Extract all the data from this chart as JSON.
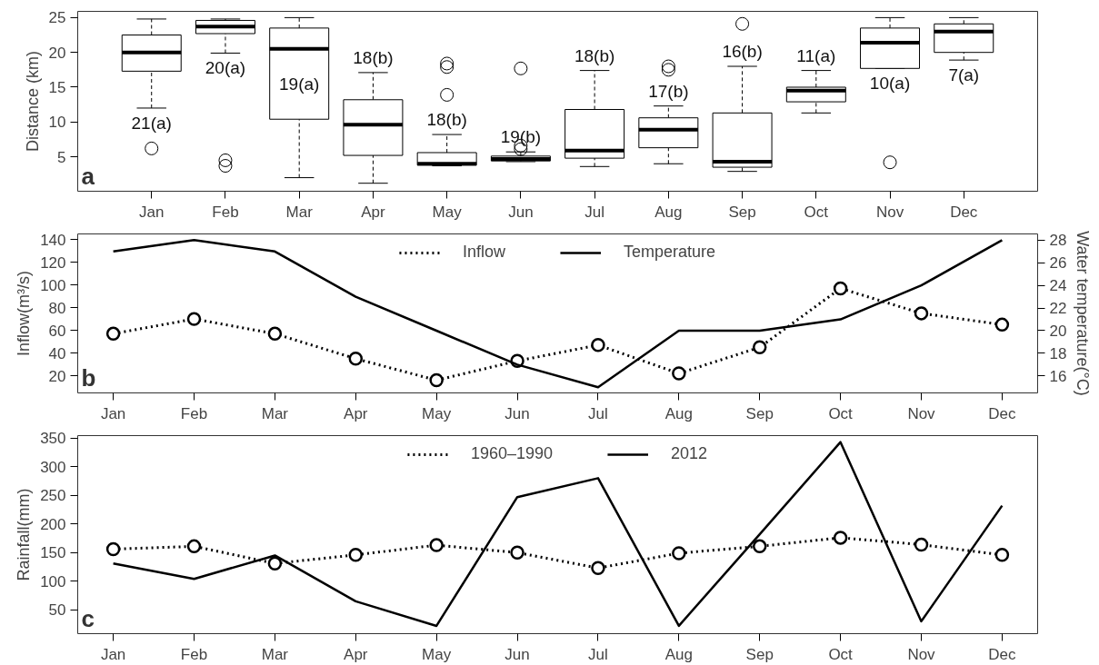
{
  "chart_data": [
    {
      "type": "box",
      "ylabel": "Distance (km)",
      "categories": [
        "Jan",
        "Feb",
        "Mar",
        "Apr",
        "May",
        "Jun",
        "Jul",
        "Aug",
        "Sep",
        "Oct",
        "Nov",
        "Dec"
      ],
      "boxes": [
        {
          "low": 12.0,
          "q1": 17.3,
          "median": 20.0,
          "q3": 22.5,
          "high": 24.8,
          "outliers": [
            6.2
          ]
        },
        {
          "low": 19.9,
          "q1": 22.7,
          "median": 23.7,
          "q3": 24.6,
          "high": 24.8,
          "outliers": [
            4.5,
            3.7
          ]
        },
        {
          "low": 2.0,
          "q1": 10.4,
          "median": 20.5,
          "q3": 23.5,
          "high": 25.0
        },
        {
          "low": 1.2,
          "q1": 5.2,
          "median": 9.6,
          "q3": 13.2,
          "high": 17.1
        },
        {
          "low": 3.7,
          "q1": 3.8,
          "median": 4.0,
          "q3": 5.6,
          "high": 8.2,
          "outliers": [
            18.4,
            17.9,
            13.9
          ]
        },
        {
          "low": 4.3,
          "q1": 4.4,
          "median": 4.7,
          "q3": 5.1,
          "high": 5.7,
          "outliers": [
            17.7,
            6.6,
            6.1
          ]
        },
        {
          "low": 3.6,
          "q1": 4.8,
          "median": 5.9,
          "q3": 11.8,
          "high": 17.4
        },
        {
          "low": 4.0,
          "q1": 6.3,
          "median": 8.9,
          "q3": 10.6,
          "high": 12.3,
          "outliers": [
            18.0,
            17.5
          ]
        },
        {
          "low": 2.9,
          "q1": 3.5,
          "median": 4.3,
          "q3": 11.3,
          "high": 18.0,
          "outliers": [
            24.1
          ]
        },
        {
          "low": 11.3,
          "q1": 12.9,
          "median": 14.5,
          "q3": 15.0,
          "high": 17.4
        },
        {
          "low": 17.7,
          "q1": 17.7,
          "median": 21.4,
          "q3": 23.5,
          "high": 25.0,
          "outliers": [
            4.2
          ]
        },
        {
          "low": 18.9,
          "q1": 20.0,
          "median": 23.0,
          "q3": 24.1,
          "high": 25.0
        }
      ],
      "ylim": [
        0.05,
        25.9
      ],
      "yticks": [
        5,
        10,
        15,
        20,
        25
      ],
      "annotations": [
        "a",
        "21(a)",
        "20(a)",
        "19(a)",
        "18(b)",
        "18(b)",
        "19(b)",
        "18(b)",
        "17(b)",
        "16(b)",
        "11(a)",
        "10(a)",
        "7(a)"
      ]
    },
    {
      "type": "line",
      "ylabel": "Inflow(m³/s)",
      "y2label": "Water temperature(°C)",
      "categories": [
        "Jan",
        "Feb",
        "Mar",
        "Apr",
        "May",
        "Jun",
        "Jul",
        "Aug",
        "Sep",
        "Oct",
        "Nov",
        "Dec"
      ],
      "series": [
        {
          "name": "Inflow",
          "color": "#000000",
          "marker": "circle",
          "line_style": "dotted",
          "values": [
            57,
            70,
            57,
            35,
            16,
            33,
            47,
            22,
            45,
            97,
            75,
            65
          ]
        },
        {
          "name": "Temperature",
          "color": "#000000",
          "marker": "none",
          "line_style": "solid",
          "axis": "y2",
          "values": [
            27,
            28,
            27,
            23,
            20,
            17,
            15,
            20,
            20,
            21,
            24,
            28
          ]
        }
      ],
      "ylim": [
        4.8,
        145
      ],
      "yticks": [
        20,
        40,
        60,
        80,
        100,
        120,
        140
      ],
      "y2lim": [
        14.5,
        28.55
      ],
      "y2ticks": [
        16,
        18,
        20,
        22,
        24,
        26,
        28
      ],
      "legend": "top",
      "annotations": [
        "b"
      ]
    },
    {
      "type": "line",
      "ylabel": "Rainfall(mm)",
      "categories": [
        "Jan",
        "Feb",
        "Mar",
        "Apr",
        "May",
        "Jun",
        "Jul",
        "Aug",
        "Sep",
        "Oct",
        "Nov",
        "Dec"
      ],
      "series": [
        {
          "name": "1960–1990",
          "color": "#000000",
          "marker": "circle",
          "line_style": "dotted",
          "values": [
            156,
            161,
            131,
            146,
            163,
            150,
            123,
            149,
            161,
            176,
            164,
            146
          ]
        },
        {
          "name": "2012",
          "color": "#000000",
          "marker": "none",
          "line_style": "solid",
          "values": [
            131,
            104,
            145,
            65,
            22,
            247,
            280,
            22,
            182,
            343,
            30,
            232
          ]
        }
      ],
      "ylim": [
        8.4,
        354.4
      ],
      "yticks": [
        50,
        100,
        150,
        200,
        250,
        300,
        350
      ],
      "legend": "top",
      "annotations": [
        "c"
      ]
    }
  ]
}
